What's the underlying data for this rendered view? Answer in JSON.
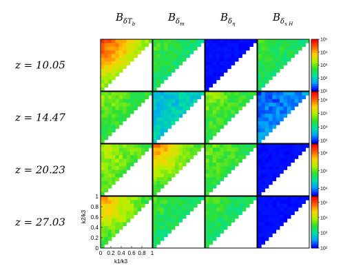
{
  "chart_data": {
    "type": "heatmap",
    "title": "",
    "columns": [
      {
        "base": "B",
        "sub": "δT",
        "subsub": "b"
      },
      {
        "base": "B",
        "sub": "δ",
        "subsub": "m"
      },
      {
        "base": "B",
        "sub": "δ",
        "subsub": "η"
      },
      {
        "base": "B",
        "sub": "δ",
        "subsub": "x H"
      }
    ],
    "rows": [
      {
        "label": "z = 10.05",
        "colorbar_ticks": [
          "10⁵",
          "10⁴",
          "10³",
          "10²",
          "10¹"
        ],
        "cb_range": [
          1,
          5
        ]
      },
      {
        "label": "z = 14.47",
        "colorbar_ticks": [
          "10⁶",
          "10⁵",
          "10⁴",
          "10³"
        ],
        "cb_range": [
          2.8,
          6.6
        ]
      },
      {
        "label": "z = 20.23",
        "colorbar_ticks": [
          "10⁶",
          "10⁵",
          "10⁴"
        ],
        "cb_range": [
          3.6,
          6.5
        ]
      },
      {
        "label": "z = 27.03",
        "colorbar_ticks": [
          "10⁵",
          "10⁴",
          "10³",
          "10²"
        ],
        "cb_range": [
          2,
          5.4
        ]
      }
    ],
    "xlabel": "k1/k3",
    "ylabel": "k2/k3",
    "x_ticks": [
      "0",
      "0.2",
      "0.4",
      "0.6",
      "0.8",
      "1"
    ],
    "y_ticks": [
      "0",
      "0.2",
      "0.4",
      "0.6",
      "0.8",
      "1"
    ],
    "xlim": [
      0,
      1
    ],
    "ylim": [
      0,
      1
    ],
    "domain": "triangle k1 <= k2 <= k3, k1 + k2 >= k3",
    "colormap": [
      "#0000ff",
      "#00a0ff",
      "#00e0a0",
      "#30e030",
      "#b0f000",
      "#ffd000",
      "#ff6000",
      "#ff0000"
    ],
    "panel_levels": [
      [
        [
          0.95,
          0.55
        ],
        [
          0.45,
          0.35
        ],
        [
          0.0,
          0.0
        ],
        [
          0.45,
          0.35
        ]
      ],
      [
        [
          0.55,
          0.4
        ],
        [
          0.2,
          0.25
        ],
        [
          0.55,
          0.4
        ],
        [
          0.05,
          0.15
        ]
      ],
      [
        [
          0.6,
          0.45
        ],
        [
          0.85,
          0.45
        ],
        [
          0.5,
          0.4
        ],
        [
          0.0,
          0.0
        ]
      ],
      [
        [
          0.8,
          0.45
        ],
        [
          0.45,
          0.35
        ],
        [
          0.45,
          0.35
        ],
        [
          0.0,
          0.0
        ]
      ]
    ]
  }
}
